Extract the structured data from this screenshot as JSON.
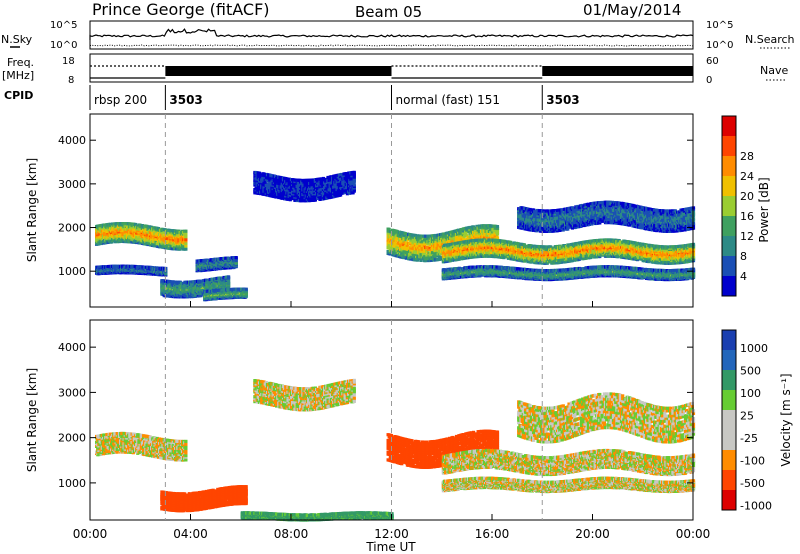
{
  "header": {
    "station": "Prince George (fitACF)",
    "beam": "Beam 05",
    "date": "01/May/2014"
  },
  "top_labels": {
    "nsky": "N.Sky",
    "nsearch": "N.Search",
    "freq_line1": "Freq.",
    "freq_line2": "[MHz]",
    "nave": "Nave",
    "cpid": "CPID",
    "noise_left_top": "10^5",
    "noise_left_bottom": "10^0",
    "noise_right_top": "10^5",
    "noise_right_bottom": "10^0",
    "freq_top": "18",
    "freq_bottom": "8",
    "nave_top": "60",
    "nave_bottom": "0"
  },
  "cpid_segments": [
    {
      "label": "rbsp 200",
      "start_hour": 0
    },
    {
      "label": "3503",
      "start_hour": 3
    },
    {
      "label": "normal (fast) 151",
      "start_hour": 12
    },
    {
      "label": "3503",
      "start_hour": 18
    }
  ],
  "colors": {
    "power": [
      "#0000cc",
      "#1a4fb5",
      "#2d8a86",
      "#3fa060",
      "#9acd32",
      "#f0c000",
      "#ff8c00",
      "#ff4500",
      "#dd0000"
    ],
    "velocity": [
      "#dd0000",
      "#ff4500",
      "#ff8c00",
      "#c8c8c4",
      "#c8c8c4",
      "#66cc33",
      "#339966",
      "#2266bb",
      "#1a3fb0"
    ]
  },
  "chart_data": [
    {
      "type": "heatmap",
      "parameter": "power",
      "ylabel": "Slant Range [km]",
      "xlabel": "Time UT",
      "x_ticks": [
        "00:00",
        "04:00",
        "08:00",
        "12:00",
        "16:00",
        "20:00",
        "00:00"
      ],
      "y_ticks": [
        "1000",
        "2000",
        "3000",
        "4000"
      ],
      "ylim": [
        180,
        4600
      ],
      "xlim_hours": [
        0,
        24
      ],
      "colorbar_label": "Power [dB]",
      "colorbar_ticks": [
        "4",
        "8",
        "12",
        "16",
        "20",
        "24",
        "28"
      ],
      "echo_bands": [
        {
          "t0": 0.2,
          "t1": 3.8,
          "r_center": 1850,
          "r_halfwidth": 220,
          "peak_db": 24
        },
        {
          "t0": 0.2,
          "t1": 3.0,
          "r_center": 1050,
          "r_halfwidth": 80,
          "peak_db": 8
        },
        {
          "t0": 2.8,
          "t1": 5.5,
          "r_center": 700,
          "r_halfwidth": 180,
          "peak_db": 12
        },
        {
          "t0": 4.2,
          "t1": 5.8,
          "r_center": 1200,
          "r_halfwidth": 120,
          "peak_db": 10
        },
        {
          "t0": 4.5,
          "t1": 6.2,
          "r_center": 500,
          "r_halfwidth": 100,
          "peak_db": 14
        },
        {
          "t0": 11.8,
          "t1": 16.2,
          "r_center": 1700,
          "r_halfwidth": 300,
          "peak_db": 22
        },
        {
          "t0": 14.0,
          "t1": 24.0,
          "r_center": 1500,
          "r_halfwidth": 200,
          "peak_db": 24
        },
        {
          "t0": 14.0,
          "t1": 24.0,
          "r_center": 1000,
          "r_halfwidth": 110,
          "peak_db": 12
        },
        {
          "t0": 17.0,
          "t1": 24.0,
          "r_center": 2300,
          "r_halfwidth": 250,
          "peak_db": 8
        },
        {
          "t0": 6.5,
          "t1": 10.5,
          "r_center": 3000,
          "r_halfwidth": 250,
          "peak_db": 4
        }
      ]
    },
    {
      "type": "heatmap",
      "parameter": "velocity",
      "ylabel": "Slant Range [km]",
      "xlabel": "Time UT",
      "x_ticks": [
        "00:00",
        "04:00",
        "08:00",
        "12:00",
        "16:00",
        "20:00",
        "00:00"
      ],
      "y_ticks": [
        "1000",
        "2000",
        "3000",
        "4000"
      ],
      "ylim": [
        180,
        4600
      ],
      "xlim_hours": [
        0,
        24
      ],
      "colorbar_label": "Velocity [m s⁻¹]",
      "colorbar_ticks": [
        "1000",
        "500",
        "100",
        "25",
        "-25",
        "-100",
        "-500",
        "-1000"
      ],
      "echo_bands": [
        {
          "t0": 0.2,
          "t1": 3.8,
          "r_center": 1850,
          "r_halfwidth": 220,
          "velocity": 0
        },
        {
          "t0": 2.8,
          "t1": 6.2,
          "r_center": 700,
          "r_halfwidth": 200,
          "velocity": -300
        },
        {
          "t0": 11.8,
          "t1": 16.2,
          "r_center": 1800,
          "r_halfwidth": 300,
          "velocity": -200
        },
        {
          "t0": 14.0,
          "t1": 24.0,
          "r_center": 1500,
          "r_halfwidth": 200,
          "velocity": 0
        },
        {
          "t0": 14.0,
          "t1": 24.0,
          "r_center": 1000,
          "r_halfwidth": 110,
          "velocity": 0
        },
        {
          "t0": 17.0,
          "t1": 24.0,
          "r_center": 2500,
          "r_halfwidth": 400,
          "velocity": 0
        },
        {
          "t0": 6.5,
          "t1": 10.5,
          "r_center": 3000,
          "r_halfwidth": 250,
          "velocity": 0
        },
        {
          "t0": 6.0,
          "t1": 12.0,
          "r_center": 300,
          "r_halfwidth": 60,
          "velocity": 150
        }
      ]
    }
  ]
}
